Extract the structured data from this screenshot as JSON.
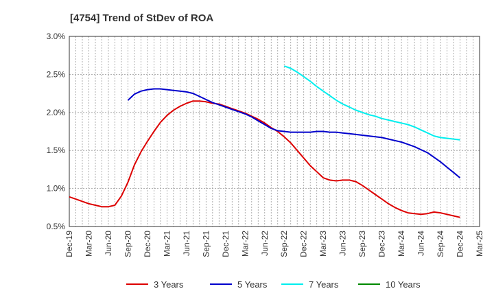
{
  "chart_data": {
    "type": "line",
    "title": "[4754]  Trend of StDev of ROA",
    "xlabel": "",
    "ylabel": "",
    "x_ticks": [
      "Dec-19",
      "Mar-20",
      "Jun-20",
      "Sep-20",
      "Dec-20",
      "Mar-21",
      "Jun-21",
      "Sep-21",
      "Dec-21",
      "Mar-22",
      "Jun-22",
      "Sep-22",
      "Dec-22",
      "Mar-23",
      "Jun-23",
      "Sep-23",
      "Dec-23",
      "Mar-24",
      "Jun-24",
      "Sep-24",
      "Dec-24",
      "Mar-25"
    ],
    "y_ticks": [
      "0.5%",
      "1.0%",
      "1.5%",
      "2.0%",
      "2.5%",
      "3.0%"
    ],
    "ylim": [
      0.5,
      3.0
    ],
    "grid": true,
    "legend_position": "bottom",
    "series": [
      {
        "name": "3 Years",
        "color": "#dd0000",
        "values": [
          [
            "Dec-19",
            0.89
          ],
          [
            "Jan-20",
            0.86
          ],
          [
            "Feb-20",
            0.83
          ],
          [
            "Mar-20",
            0.8
          ],
          [
            "Apr-20",
            0.78
          ],
          [
            "May-20",
            0.76
          ],
          [
            "Jun-20",
            0.76
          ],
          [
            "Jul-20",
            0.78
          ],
          [
            "Aug-20",
            0.9
          ],
          [
            "Sep-20",
            1.08
          ],
          [
            "Oct-20",
            1.31
          ],
          [
            "Nov-20",
            1.48
          ],
          [
            "Dec-20",
            1.62
          ],
          [
            "Jan-21",
            1.75
          ],
          [
            "Feb-21",
            1.87
          ],
          [
            "Mar-21",
            1.96
          ],
          [
            "Apr-21",
            2.03
          ],
          [
            "May-21",
            2.08
          ],
          [
            "Jun-21",
            2.12
          ],
          [
            "Jul-21",
            2.15
          ],
          [
            "Aug-21",
            2.15
          ],
          [
            "Sep-21",
            2.14
          ],
          [
            "Oct-21",
            2.12
          ],
          [
            "Nov-21",
            2.11
          ],
          [
            "Dec-21",
            2.08
          ],
          [
            "Jan-22",
            2.05
          ],
          [
            "Feb-22",
            2.02
          ],
          [
            "Mar-22",
            1.99
          ],
          [
            "Apr-22",
            1.95
          ],
          [
            "May-22",
            1.91
          ],
          [
            "Jun-22",
            1.86
          ],
          [
            "Jul-22",
            1.8
          ],
          [
            "Aug-22",
            1.75
          ],
          [
            "Sep-22",
            1.68
          ],
          [
            "Oct-22",
            1.6
          ],
          [
            "Nov-22",
            1.5
          ],
          [
            "Dec-22",
            1.4
          ],
          [
            "Jan-23",
            1.3
          ],
          [
            "Feb-23",
            1.22
          ],
          [
            "Mar-23",
            1.14
          ],
          [
            "Apr-23",
            1.11
          ],
          [
            "May-23",
            1.1
          ],
          [
            "Jun-23",
            1.11
          ],
          [
            "Jul-23",
            1.11
          ],
          [
            "Aug-23",
            1.09
          ],
          [
            "Sep-23",
            1.04
          ],
          [
            "Oct-23",
            0.98
          ],
          [
            "Nov-23",
            0.92
          ],
          [
            "Dec-23",
            0.86
          ],
          [
            "Jan-24",
            0.8
          ],
          [
            "Feb-24",
            0.75
          ],
          [
            "Mar-24",
            0.71
          ],
          [
            "Apr-24",
            0.68
          ],
          [
            "May-24",
            0.67
          ],
          [
            "Jun-24",
            0.66
          ],
          [
            "Jul-24",
            0.67
          ],
          [
            "Aug-24",
            0.69
          ],
          [
            "Sep-24",
            0.68
          ],
          [
            "Oct-24",
            0.66
          ],
          [
            "Nov-24",
            0.64
          ],
          [
            "Dec-24",
            0.62
          ]
        ]
      },
      {
        "name": "5 Years",
        "color": "#0000cc",
        "values": [
          [
            "Sep-20",
            2.16
          ],
          [
            "Oct-20",
            2.24
          ],
          [
            "Nov-20",
            2.28
          ],
          [
            "Dec-20",
            2.3
          ],
          [
            "Jan-21",
            2.31
          ],
          [
            "Feb-21",
            2.31
          ],
          [
            "Mar-21",
            2.3
          ],
          [
            "Apr-21",
            2.29
          ],
          [
            "May-21",
            2.28
          ],
          [
            "Jun-21",
            2.27
          ],
          [
            "Jul-21",
            2.25
          ],
          [
            "Aug-21",
            2.21
          ],
          [
            "Sep-21",
            2.17
          ],
          [
            "Oct-21",
            2.13
          ],
          [
            "Nov-21",
            2.1
          ],
          [
            "Dec-21",
            2.07
          ],
          [
            "Jan-22",
            2.04
          ],
          [
            "Feb-22",
            2.01
          ],
          [
            "Mar-22",
            1.98
          ],
          [
            "Apr-22",
            1.94
          ],
          [
            "May-22",
            1.89
          ],
          [
            "Jun-22",
            1.84
          ],
          [
            "Jul-22",
            1.79
          ],
          [
            "Aug-22",
            1.76
          ],
          [
            "Sep-22",
            1.75
          ],
          [
            "Oct-22",
            1.74
          ],
          [
            "Nov-22",
            1.74
          ],
          [
            "Dec-22",
            1.74
          ],
          [
            "Jan-23",
            1.74
          ],
          [
            "Feb-23",
            1.75
          ],
          [
            "Mar-23",
            1.75
          ],
          [
            "Apr-23",
            1.74
          ],
          [
            "May-23",
            1.74
          ],
          [
            "Jun-23",
            1.73
          ],
          [
            "Jul-23",
            1.72
          ],
          [
            "Aug-23",
            1.71
          ],
          [
            "Sep-23",
            1.7
          ],
          [
            "Oct-23",
            1.69
          ],
          [
            "Nov-23",
            1.68
          ],
          [
            "Dec-23",
            1.67
          ],
          [
            "Jan-24",
            1.65
          ],
          [
            "Feb-24",
            1.63
          ],
          [
            "Mar-24",
            1.61
          ],
          [
            "Apr-24",
            1.58
          ],
          [
            "May-24",
            1.55
          ],
          [
            "Jun-24",
            1.51
          ],
          [
            "Jul-24",
            1.47
          ],
          [
            "Aug-24",
            1.41
          ],
          [
            "Sep-24",
            1.35
          ],
          [
            "Oct-24",
            1.28
          ],
          [
            "Nov-24",
            1.21
          ],
          [
            "Dec-24",
            1.14
          ]
        ]
      },
      {
        "name": "7 Years",
        "color": "#00eeee",
        "values": [
          [
            "Sep-22",
            2.61
          ],
          [
            "Oct-22",
            2.58
          ],
          [
            "Nov-22",
            2.53
          ],
          [
            "Dec-22",
            2.47
          ],
          [
            "Jan-23",
            2.41
          ],
          [
            "Feb-23",
            2.34
          ],
          [
            "Mar-23",
            2.28
          ],
          [
            "Apr-23",
            2.22
          ],
          [
            "May-23",
            2.16
          ],
          [
            "Jun-23",
            2.11
          ],
          [
            "Jul-23",
            2.07
          ],
          [
            "Aug-23",
            2.03
          ],
          [
            "Sep-23",
            2.0
          ],
          [
            "Oct-23",
            1.97
          ],
          [
            "Nov-23",
            1.95
          ],
          [
            "Dec-23",
            1.92
          ],
          [
            "Jan-24",
            1.9
          ],
          [
            "Feb-24",
            1.88
          ],
          [
            "Mar-24",
            1.86
          ],
          [
            "Apr-24",
            1.84
          ],
          [
            "May-24",
            1.81
          ],
          [
            "Jun-24",
            1.77
          ],
          [
            "Jul-24",
            1.73
          ],
          [
            "Aug-24",
            1.69
          ],
          [
            "Sep-24",
            1.67
          ],
          [
            "Oct-24",
            1.66
          ],
          [
            "Nov-24",
            1.65
          ],
          [
            "Dec-24",
            1.64
          ]
        ]
      },
      {
        "name": "10 Years",
        "color": "#008800",
        "values": []
      }
    ]
  }
}
